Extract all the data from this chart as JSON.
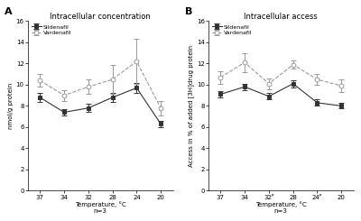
{
  "temperatures": [
    37,
    34,
    32,
    28,
    24,
    20
  ],
  "panel_A": {
    "title": "Intracellular concentration",
    "ylabel": "nmol/g protein",
    "sildenafil_y": [
      8.8,
      7.4,
      7.8,
      8.8,
      9.7,
      6.3
    ],
    "sildenafil_err": [
      0.4,
      0.3,
      0.4,
      0.4,
      0.5,
      0.3
    ],
    "vardenafil_y": [
      10.4,
      9.0,
      9.8,
      10.5,
      12.2,
      7.8
    ],
    "vardenafil_err": [
      0.6,
      0.5,
      0.7,
      1.4,
      2.1,
      0.7
    ],
    "ylim": [
      0,
      16
    ],
    "yticks": [
      0,
      2,
      4,
      6,
      8,
      10,
      12,
      14,
      16
    ]
  },
  "panel_B": {
    "title": "Intracellular access",
    "ylabel": "Access in % of added [3H]drug protein",
    "sildenafil_y": [
      9.1,
      9.8,
      8.9,
      10.1,
      8.3,
      8.0
    ],
    "sildenafil_err": [
      0.3,
      0.3,
      0.3,
      0.35,
      0.3,
      0.25
    ],
    "vardenafil_y": [
      10.7,
      12.1,
      10.1,
      11.9,
      10.5,
      9.9
    ],
    "vardenafil_err": [
      0.6,
      0.9,
      0.5,
      0.4,
      0.5,
      0.6
    ],
    "ylim": [
      0,
      16
    ],
    "yticks": [
      0,
      2,
      4,
      6,
      8,
      10,
      12,
      14,
      16
    ]
  },
  "xlabel": "Temperature, °C",
  "xlabel2": "n=3",
  "legend_labels": [
    "Sildenafil",
    "Vardenafil"
  ],
  "sildenafil_color": "#333333",
  "vardenafil_color": "#999999",
  "xtick_labels_A": [
    "37",
    "34",
    "32",
    "28",
    "24",
    "20"
  ],
  "xtick_labels_B": [
    "37",
    "34",
    "32ᴾ",
    "28",
    "24ᴾ",
    "20"
  ],
  "background_color": "#ffffff"
}
